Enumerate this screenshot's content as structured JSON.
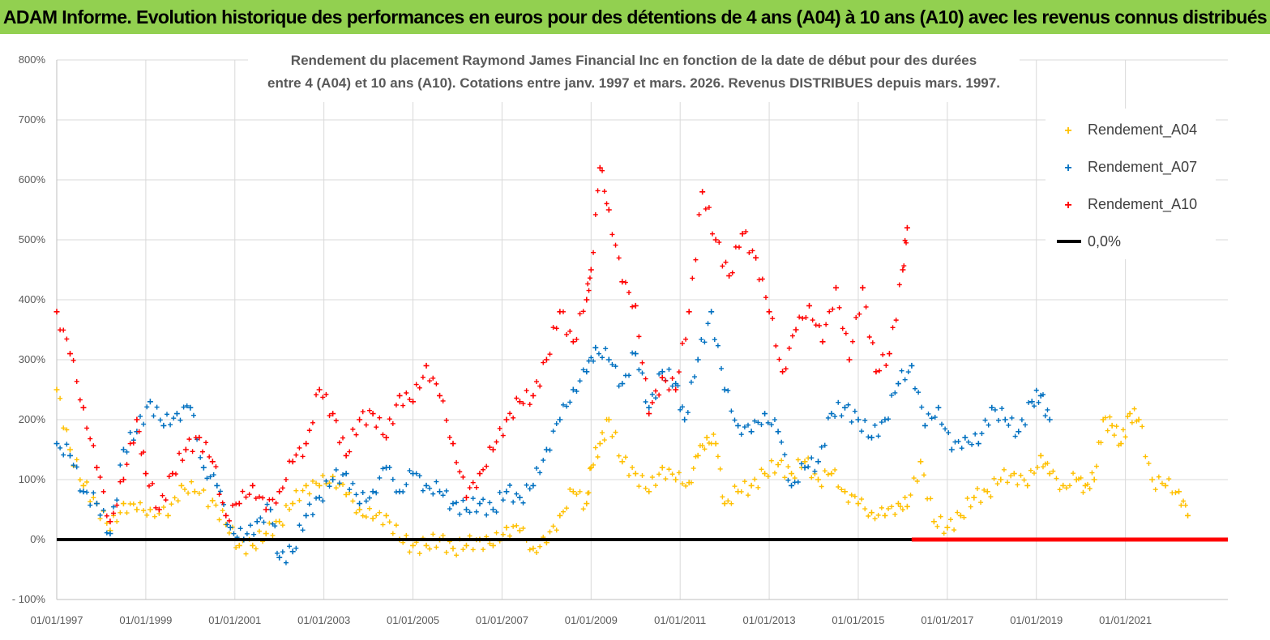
{
  "header": {
    "title": "ADAM Informe. Evolution historique des performances en euros pour des détentions de 4 ans (A04) à 10 ans (A10) avec les revenus connus distribués"
  },
  "colors": {
    "banner": "#92d050",
    "a04": "#ffc000",
    "a07": "#0070c0",
    "a10": "#ff0000",
    "zero": "#000000",
    "grid": "#d9d9d9"
  },
  "chart_data": {
    "type": "scatter",
    "title": "Rendement du placement Raymond James Financial Inc en fonction de la date de début pour des durées",
    "subtitle": "entre 4 (A04) et 10 ans (A10). Cotations entre janv. 1997 et mars. 2026. Revenus DISTRIBUES depuis mars. 1997.",
    "xlabel": "",
    "ylabel": "",
    "xlim": [
      1997.0,
      2023.3
    ],
    "ylim": [
      -100,
      800
    ],
    "y_ticks": [
      "- 100%",
      "0%",
      "100%",
      "200%",
      "300%",
      "400%",
      "500%",
      "600%",
      "700%",
      "800%"
    ],
    "y_tick_values": [
      -100,
      0,
      100,
      200,
      300,
      400,
      500,
      600,
      700,
      800
    ],
    "x_ticks": [
      "01/01/1997",
      "01/01/1999",
      "01/01/2001",
      "01/01/2003",
      "01/01/2005",
      "01/01/2007",
      "01/01/2009",
      "01/01/2011",
      "01/01/2013",
      "01/01/2015",
      "01/01/2017",
      "01/01/2019",
      "01/01/2021"
    ],
    "x_tick_values": [
      1997,
      1999,
      2001,
      2003,
      2005,
      2007,
      2009,
      2011,
      2013,
      2015,
      2017,
      2019,
      2021
    ],
    "legend": [
      "Rendement_A04",
      "Rendement_A07",
      "Rendement_A10",
      "0,0%"
    ],
    "legend_position": "top-right",
    "zero_line": {
      "label": "0,0%",
      "value": 0,
      "x_range": [
        1997.0,
        2023.3
      ],
      "red_segment_from": 2016.2
    },
    "series": [
      {
        "name": "Rendement_A04",
        "color": "#ffc000",
        "x": [
          1997.0,
          1997.3,
          1997.6,
          1997.9,
          1998.2,
          1998.5,
          1998.8,
          1999.1,
          1999.5,
          1999.8,
          2000.1,
          2000.5,
          2000.8,
          2001.1,
          2001.4,
          2001.7,
          2002.0,
          2002.3,
          2002.6,
          2002.9,
          2003.2,
          2003.5,
          2003.8,
          2004.1,
          2004.4,
          2004.7,
          2005.0,
          2005.3,
          2005.6,
          2005.9,
          2006.2,
          2006.5,
          2006.8,
          2007.1,
          2007.4,
          2007.7,
          2008.0,
          2008.3,
          2008.6,
          2008.9,
          2009.0,
          2009.2,
          2009.4,
          2009.7,
          2010.0,
          2010.3,
          2010.6,
          2010.9,
          2011.2,
          2011.4,
          2011.6,
          2011.8,
          2012.0,
          2012.3,
          2012.6,
          2012.9,
          2013.2,
          2013.5,
          2013.8,
          2014.1,
          2014.4,
          2014.7,
          2015.0,
          2015.3,
          2015.6,
          2015.9,
          2016.1,
          2016.4,
          2016.7,
          2017.0,
          2017.3,
          2017.6,
          2017.9,
          2018.2,
          2018.5,
          2018.8,
          2019.1,
          2019.3,
          2019.6,
          2019.9,
          2020.1,
          2020.3,
          2020.5,
          2020.7,
          2020.9,
          2021.1,
          2021.3,
          2021.6,
          2021.9,
          2022.2,
          2022.4
        ],
        "y": [
          250,
          150,
          90,
          60,
          15,
          60,
          50,
          50,
          40,
          90,
          80,
          65,
          25,
          -10,
          -10,
          10,
          30,
          60,
          90,
          90,
          105,
          75,
          50,
          35,
          40,
          0,
          -10,
          -10,
          0,
          -15,
          -10,
          0,
          -10,
          20,
          15,
          -15,
          -5,
          40,
          80,
          60,
          120,
          160,
          200,
          130,
          110,
          80,
          120,
          100,
          95,
          140,
          170,
          160,
          60,
          80,
          90,
          110,
          125,
          110,
          130,
          100,
          110,
          80,
          60,
          45,
          40,
          60,
          55,
          130,
          30,
          20,
          40,
          70,
          80,
          100,
          110,
          90,
          140,
          110,
          90,
          100,
          90,
          100,
          200,
          190,
          160,
          210,
          200,
          100,
          90,
          80,
          40
        ]
      },
      {
        "name": "Rendement_A07",
        "color": "#0070c0",
        "x": [
          1997.0,
          1997.3,
          1997.6,
          1997.9,
          1998.2,
          1998.5,
          1998.8,
          1999.1,
          1999.4,
          1999.7,
          2000.0,
          2000.3,
          2000.6,
          2000.9,
          2001.2,
          2001.5,
          2001.8,
          2002.0,
          2002.3,
          2002.6,
          2002.9,
          2003.2,
          2003.5,
          2003.8,
          2004.1,
          2004.4,
          2004.7,
          2005.0,
          2005.3,
          2005.6,
          2005.9,
          2006.2,
          2006.5,
          2006.8,
          2007.1,
          2007.4,
          2007.7,
          2008.0,
          2008.3,
          2008.6,
          2008.9,
          2009.1,
          2009.4,
          2009.7,
          2010.0,
          2010.3,
          2010.6,
          2010.9,
          2011.1,
          2011.4,
          2011.7,
          2012.0,
          2012.3,
          2012.6,
          2012.9,
          2013.2,
          2013.5,
          2013.8,
          2014.1,
          2014.4,
          2014.7,
          2015.0,
          2015.3,
          2015.6,
          2015.9,
          2016.2,
          2016.5,
          2016.8,
          2017.1,
          2017.4,
          2017.7,
          2018.0,
          2018.3,
          2018.6,
          2018.9,
          2019.1,
          2019.3
        ],
        "y": [
          160,
          140,
          80,
          60,
          10,
          150,
          180,
          230,
          190,
          210,
          220,
          120,
          90,
          20,
          0,
          30,
          50,
          -30,
          -20,
          40,
          70,
          100,
          110,
          60,
          80,
          120,
          80,
          110,
          90,
          80,
          60,
          50,
          60,
          50,
          80,
          70,
          90,
          150,
          200,
          250,
          280,
          320,
          300,
          260,
          310,
          220,
          280,
          260,
          200,
          300,
          380,
          250,
          190,
          180,
          210,
          180,
          90,
          120,
          130,
          210,
          220,
          200,
          170,
          200,
          260,
          290,
          190,
          220,
          150,
          170,
          160,
          220,
          200,
          180,
          230,
          240,
          200
        ]
      },
      {
        "name": "Rendement_A10",
        "color": "#ff0000",
        "x": [
          1997.0,
          1997.3,
          1997.6,
          1997.9,
          1998.2,
          1998.5,
          1998.8,
          1999.0,
          1999.3,
          1999.6,
          1999.9,
          2000.2,
          2000.5,
          2000.8,
          2001.1,
          2001.4,
          2001.7,
          2002.0,
          2002.3,
          2002.6,
          2002.9,
          2003.2,
          2003.5,
          2003.8,
          2004.1,
          2004.4,
          2004.7,
          2005.0,
          2005.3,
          2005.6,
          2005.9,
          2006.2,
          2006.5,
          2006.8,
          2007.1,
          2007.4,
          2007.7,
          2008.0,
          2008.3,
          2008.6,
          2008.9,
          2009.0,
          2009.2,
          2009.4,
          2009.7,
          2010.0,
          2010.3,
          2010.6,
          2010.9,
          2011.2,
          2011.5,
          2011.8,
          2012.1,
          2012.4,
          2012.7,
          2013.0,
          2013.3,
          2013.6,
          2013.9,
          2014.2,
          2014.5,
          2014.8,
          2015.1,
          2015.4,
          2015.7,
          2016.0,
          2016.1
        ],
        "y": [
          380,
          310,
          220,
          120,
          30,
          100,
          200,
          110,
          50,
          110,
          150,
          170,
          130,
          40,
          60,
          90,
          50,
          80,
          130,
          160,
          250,
          210,
          140,
          200,
          210,
          170,
          240,
          230,
          290,
          240,
          160,
          70,
          110,
          150,
          200,
          230,
          240,
          300,
          380,
          330,
          400,
          450,
          620,
          550,
          430,
          390,
          210,
          270,
          250,
          380,
          580,
          500,
          440,
          510,
          470,
          380,
          280,
          350,
          390,
          330,
          420,
          300,
          420,
          280,
          310,
          450,
          520
        ]
      }
    ]
  }
}
